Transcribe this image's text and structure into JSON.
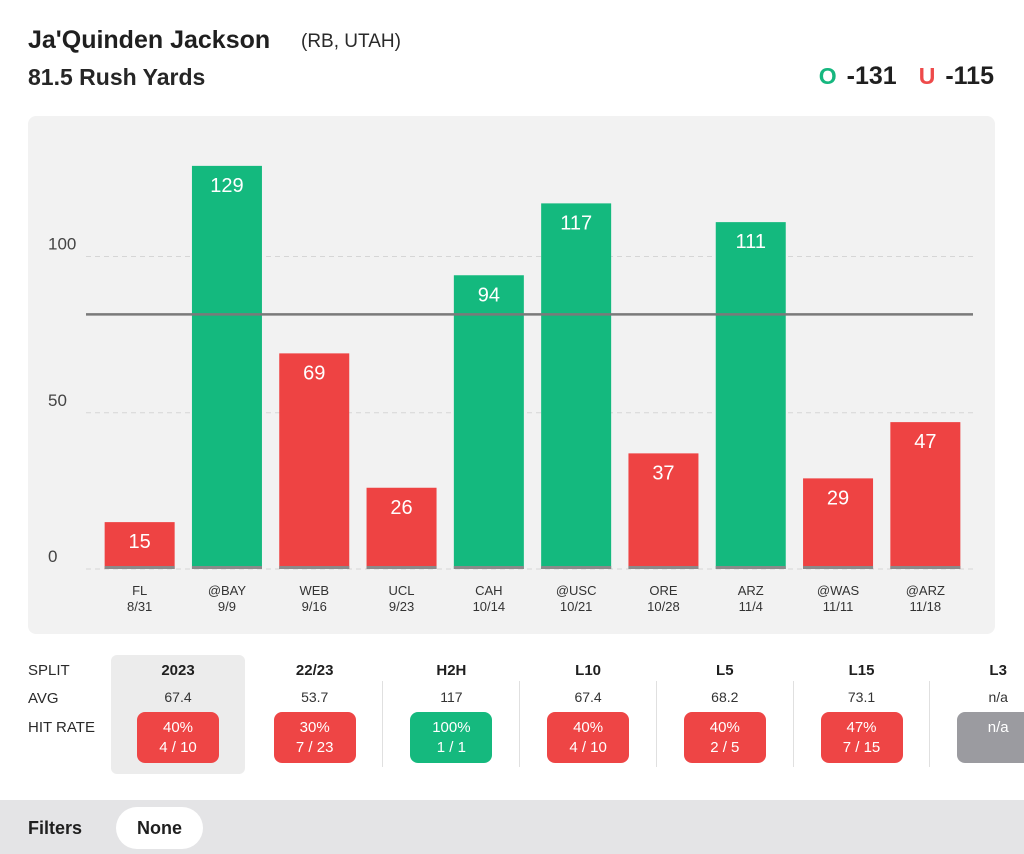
{
  "header": {
    "player_name": "Ja'Quinden Jackson",
    "player_position": "(RB, UTAH)",
    "prop_line": "81.5 Rush Yards",
    "over": {
      "mark": "O",
      "odds": "-131"
    },
    "under": {
      "mark": "U",
      "odds": "-115"
    }
  },
  "colors": {
    "over": "#16b77f",
    "under": "#ee4a4a",
    "bar_over": "#14b97e",
    "bar_under": "#ee4343",
    "line": "#7a7a7a",
    "na": "#9b9ba0"
  },
  "chart_data": {
    "type": "bar",
    "title": "",
    "xlabel": "",
    "ylabel": "",
    "ylim": [
      0,
      135
    ],
    "y_ticks": [
      0,
      50,
      100
    ],
    "threshold": 81.5,
    "categories": [
      "FL",
      "@BAY",
      "WEB",
      "UCL",
      "CAH",
      "@USC",
      "ORE",
      "ARZ",
      "@WAS",
      "@ARZ"
    ],
    "dates": [
      "8/31",
      "9/9",
      "9/16",
      "9/23",
      "10/14",
      "10/21",
      "10/28",
      "11/4",
      "11/11",
      "11/18"
    ],
    "values": [
      15,
      129,
      69,
      26,
      94,
      117,
      37,
      111,
      29,
      47
    ]
  },
  "splits": {
    "row_labels": {
      "split": "SPLIT",
      "avg": "AVG",
      "hit_rate": "HIT RATE"
    },
    "columns": [
      {
        "label": "2023",
        "avg": "67.4",
        "pct": "40%",
        "ratio": "4 / 10",
        "status": "red",
        "selected": true
      },
      {
        "label": "22/23",
        "avg": "53.7",
        "pct": "30%",
        "ratio": "7 / 23",
        "status": "red",
        "selected": false
      },
      {
        "label": "H2H",
        "avg": "117",
        "pct": "100%",
        "ratio": "1 / 1",
        "status": "green",
        "selected": false
      },
      {
        "label": "L10",
        "avg": "67.4",
        "pct": "40%",
        "ratio": "4 / 10",
        "status": "red",
        "selected": false
      },
      {
        "label": "L5",
        "avg": "68.2",
        "pct": "40%",
        "ratio": "2 / 5",
        "status": "red",
        "selected": false
      },
      {
        "label": "L15",
        "avg": "73.1",
        "pct": "47%",
        "ratio": "7 / 15",
        "status": "red",
        "selected": false
      },
      {
        "label": "L3",
        "avg": "n/a",
        "pct": "n/a",
        "ratio": "",
        "status": "gray",
        "selected": false
      }
    ]
  },
  "filters": {
    "label": "Filters",
    "value": "None"
  }
}
